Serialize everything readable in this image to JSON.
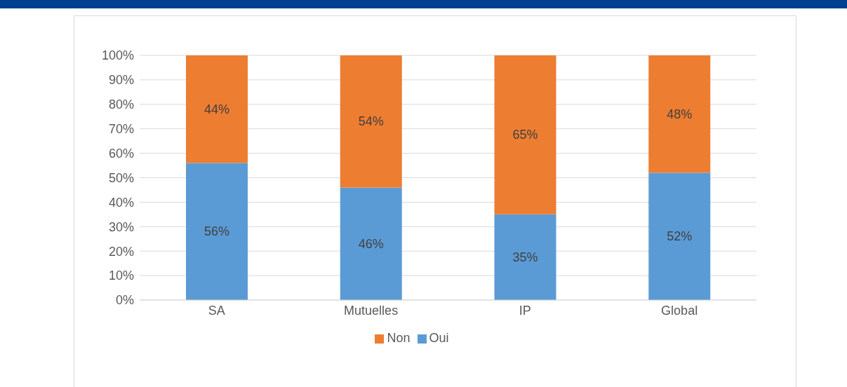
{
  "chart_data": {
    "type": "bar",
    "stacked": true,
    "categories": [
      "SA",
      "Mutuelles",
      "IP",
      "Global"
    ],
    "series": [
      {
        "name": "Oui",
        "color": "#5b9bd5",
        "values": [
          56,
          46,
          35,
          52
        ],
        "value_labels": [
          "56%",
          "46%",
          "35%",
          "52%"
        ]
      },
      {
        "name": "Non",
        "color": "#ed7d31",
        "values": [
          44,
          54,
          65,
          48
        ],
        "value_labels": [
          "44%",
          "54%",
          "65%",
          "48%"
        ]
      }
    ],
    "ylim": [
      0,
      100
    ],
    "yticks": [
      {
        "value": 0,
        "label": "0%"
      },
      {
        "value": 10,
        "label": "10%"
      },
      {
        "value": 20,
        "label": "20%"
      },
      {
        "value": 30,
        "label": "30%"
      },
      {
        "value": 40,
        "label": "40%"
      },
      {
        "value": 50,
        "label": "50%"
      },
      {
        "value": 60,
        "label": "60%"
      },
      {
        "value": 70,
        "label": "70%"
      },
      {
        "value": 80,
        "label": "80%"
      },
      {
        "value": 90,
        "label": "90%"
      },
      {
        "value": 100,
        "label": "100%"
      }
    ],
    "grid": "y",
    "legend": "bottom"
  }
}
